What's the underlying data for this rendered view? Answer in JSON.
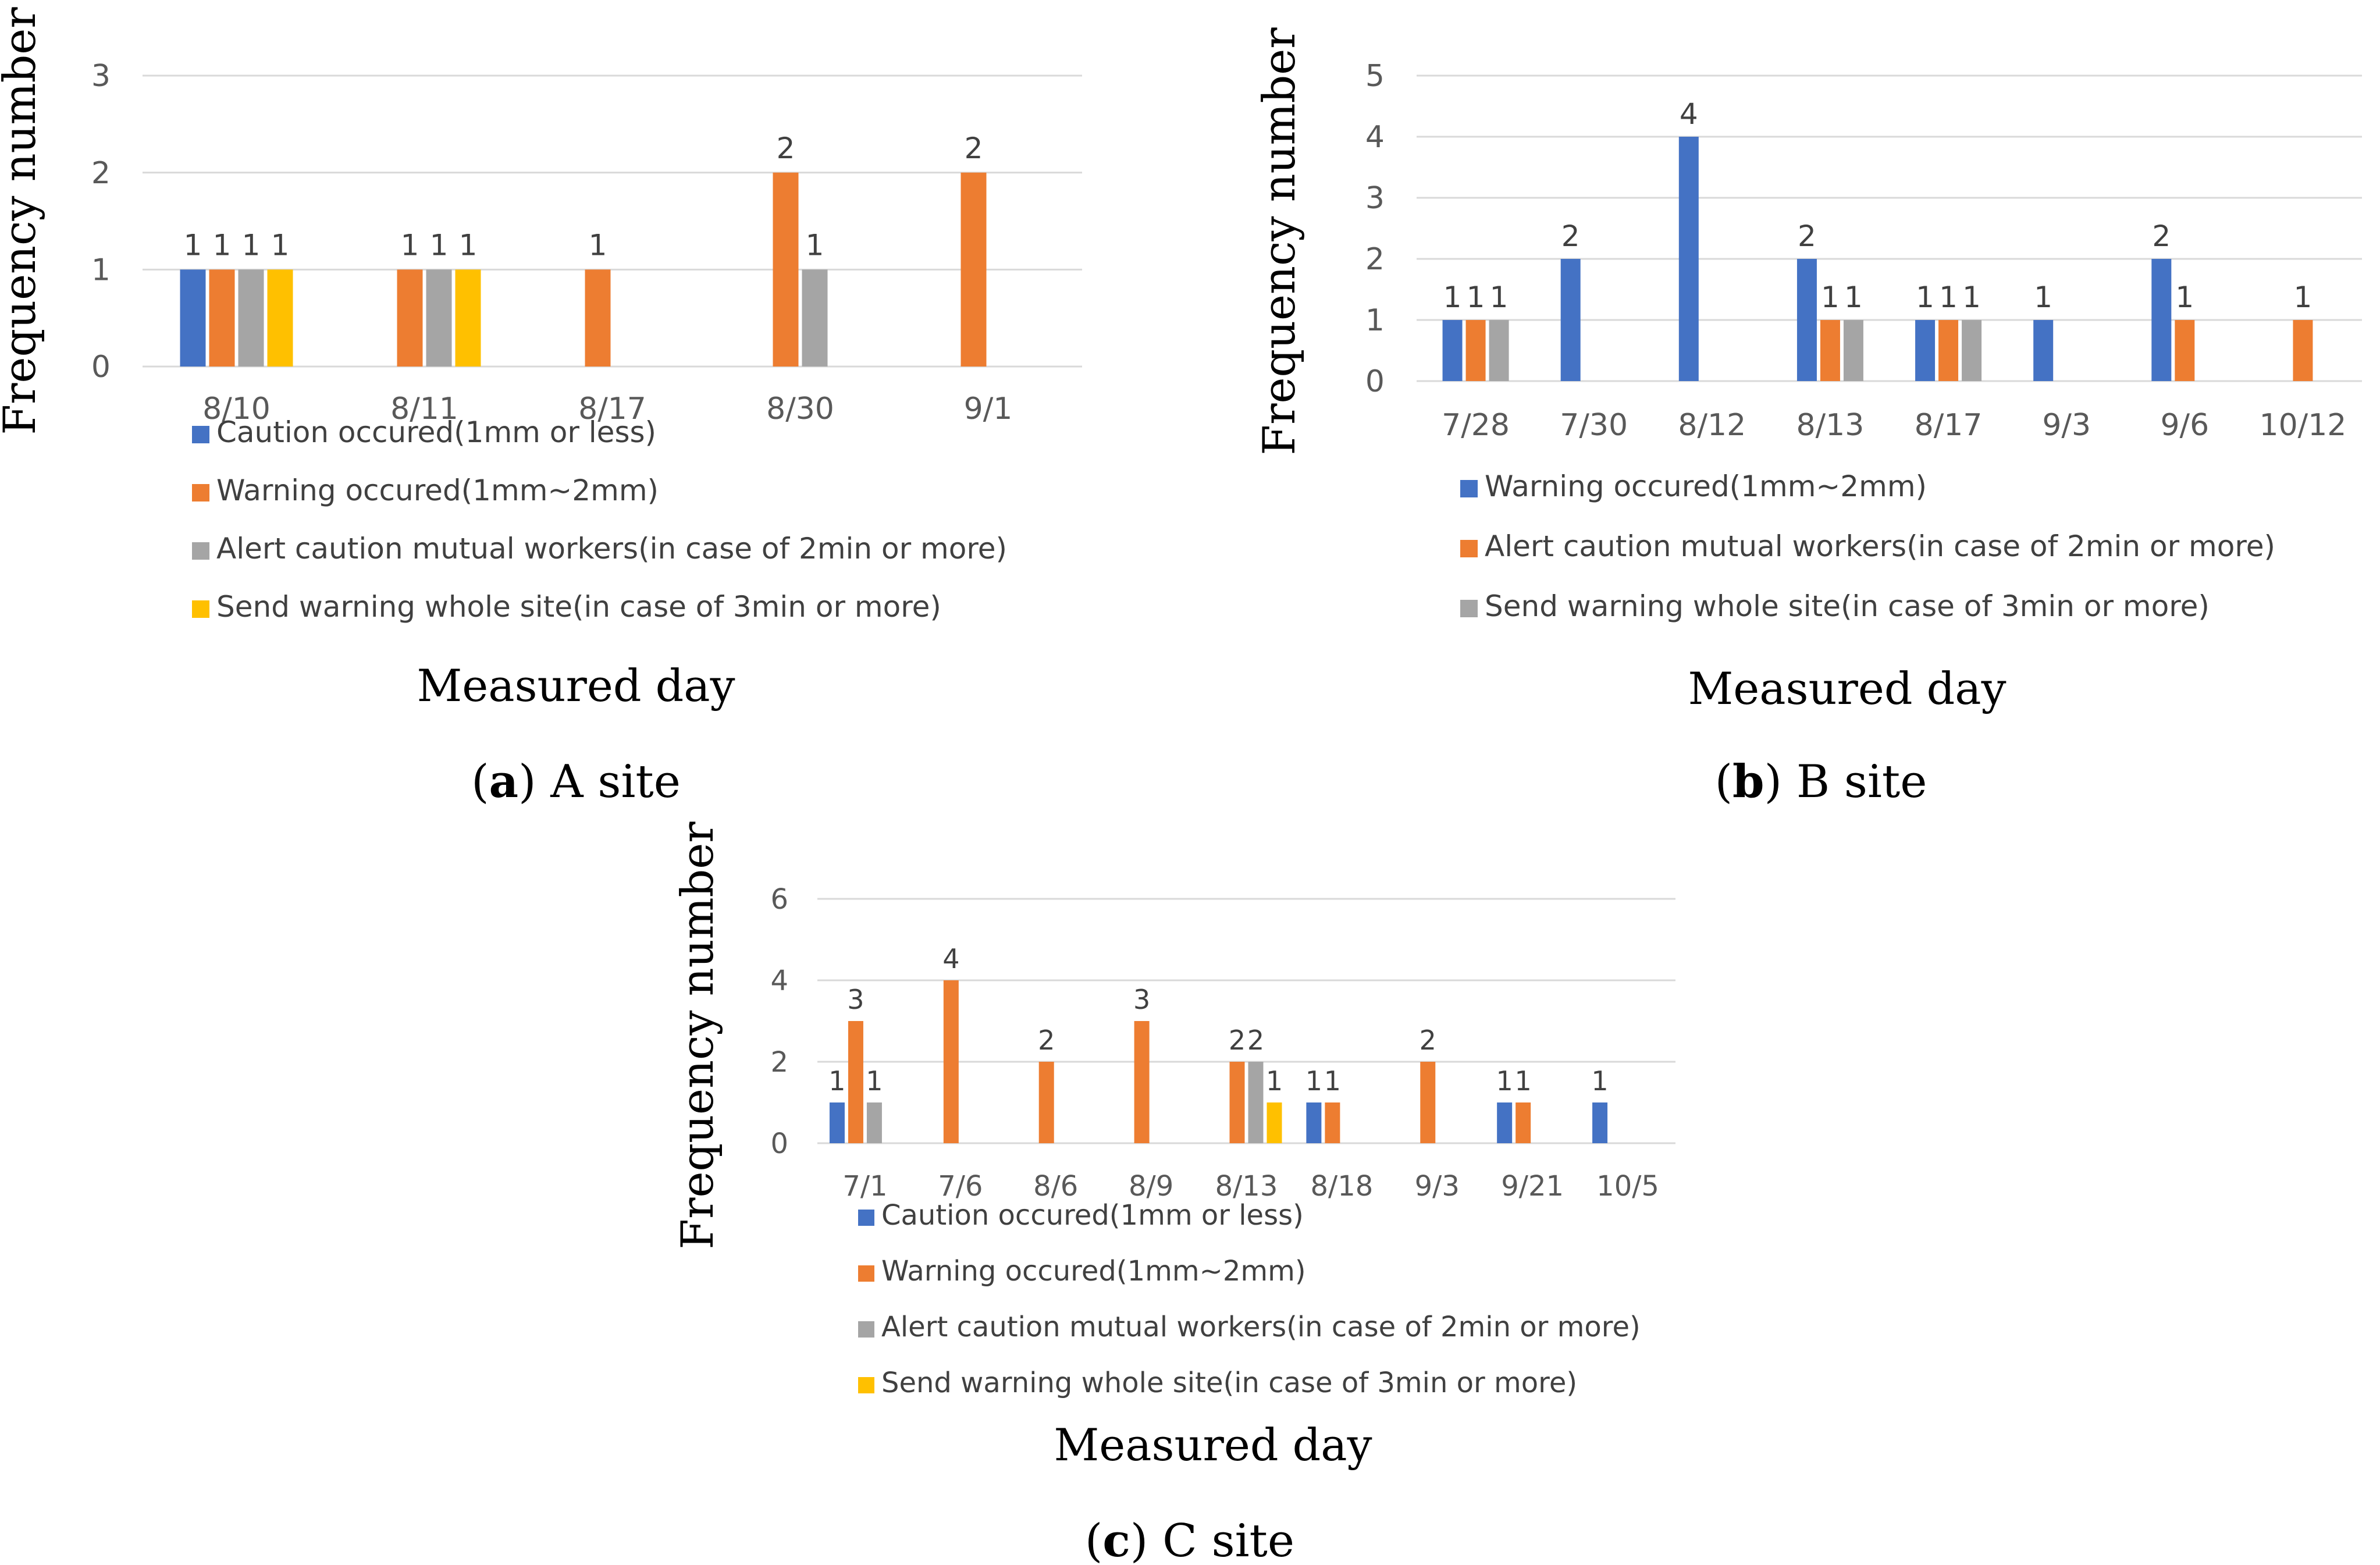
{
  "chart_data": [
    {
      "type": "bar",
      "id": "a",
      "caption_letter": "a",
      "caption_text": "A site",
      "xlabel": "Measured day",
      "ylabel": "Frequency number",
      "ylim": [
        0,
        3
      ],
      "yticks": [
        "0",
        "1",
        "2",
        "3"
      ],
      "categories": [
        "8/10",
        "8/11",
        "8/17",
        "8/30",
        "9/1"
      ],
      "legend_placement": "bottom",
      "series": [
        {
          "name": "Caution occured(1mm or less)",
          "color": "#4472C4",
          "values": [
            1,
            null,
            null,
            null,
            null
          ]
        },
        {
          "name": "Warning occured(1mm~2mm)",
          "color": "#ED7D31",
          "values": [
            1,
            1,
            1,
            2,
            2
          ]
        },
        {
          "name": "Alert caution mutual workers(in case of 2min or more)",
          "color": "#A5A5A5",
          "values": [
            1,
            1,
            null,
            1,
            null
          ]
        },
        {
          "name": "Send warning whole site(in case of 3min or more)",
          "color": "#FFC000",
          "values": [
            1,
            1,
            null,
            null,
            null
          ]
        }
      ]
    },
    {
      "type": "bar",
      "id": "b",
      "caption_letter": "b",
      "caption_text": "B site",
      "xlabel": "Measured day",
      "ylabel": "Frequency number",
      "ylim": [
        0,
        5
      ],
      "yticks": [
        "0",
        "1",
        "2",
        "3",
        "4",
        "5"
      ],
      "categories": [
        "7/28",
        "7/30",
        "8/12",
        "8/13",
        "8/17",
        "9/3",
        "9/6",
        "10/12"
      ],
      "legend_placement": "bottom",
      "series": [
        {
          "name": "Warning occured(1mm~2mm)",
          "color": "#4472C4",
          "values": [
            1,
            2,
            4,
            2,
            1,
            1,
            2,
            null
          ]
        },
        {
          "name": "Alert caution mutual workers(in case of 2min or more)",
          "color": "#ED7D31",
          "values": [
            1,
            null,
            null,
            1,
            1,
            null,
            1,
            1
          ]
        },
        {
          "name": "Send warning whole site(in case of 3min or more)",
          "color": "#A5A5A5",
          "values": [
            1,
            null,
            null,
            1,
            1,
            null,
            null,
            null
          ]
        }
      ]
    },
    {
      "type": "bar",
      "id": "c",
      "caption_letter": "c",
      "caption_text": "C site",
      "xlabel": "Measured day",
      "ylabel": "Frequency number",
      "ylim": [
        0,
        6
      ],
      "yticks": [
        "0",
        "2",
        "4",
        "6"
      ],
      "categories": [
        "7/1",
        "7/6",
        "8/6",
        "8/9",
        "8/13",
        "8/18",
        "9/3",
        "9/21",
        "10/5"
      ],
      "legend_placement": "bottom",
      "series": [
        {
          "name": "Caution occured(1mm or less)",
          "color": "#4472C4",
          "values": [
            1,
            null,
            null,
            null,
            null,
            1,
            null,
            1,
            1
          ]
        },
        {
          "name": "Warning occured(1mm~2mm)",
          "color": "#ED7D31",
          "values": [
            3,
            4,
            2,
            3,
            2,
            1,
            2,
            1,
            null
          ]
        },
        {
          "name": "Alert caution mutual workers(in case of 2min or more)",
          "color": "#A5A5A5",
          "values": [
            1,
            null,
            null,
            null,
            2,
            null,
            null,
            null,
            null
          ]
        },
        {
          "name": "Send warning whole site(in case of 3min or more)",
          "color": "#FFC000",
          "values": [
            null,
            null,
            null,
            null,
            1,
            null,
            null,
            null,
            null
          ]
        }
      ]
    }
  ]
}
